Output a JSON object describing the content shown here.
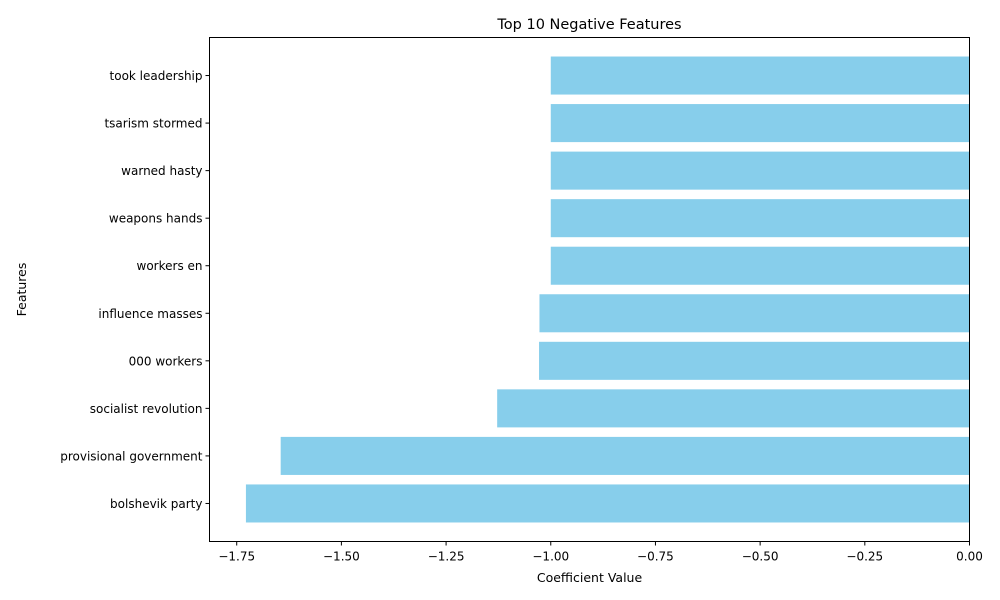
{
  "chart_data": {
    "type": "bar",
    "orientation": "horizontal",
    "title": "Top 10 Negative Features",
    "xlabel": "Coefficient Value",
    "ylabel": "Features",
    "xlim": [
      -1.815,
      0.0
    ],
    "xticks": [
      -1.75,
      -1.5,
      -1.25,
      -1.0,
      -0.75,
      -0.5,
      -0.25,
      0.0
    ],
    "xtick_labels": [
      "−1.75",
      "−1.50",
      "−1.25",
      "−1.00",
      "−0.75",
      "−0.50",
      "−0.25",
      "0.00"
    ],
    "categories": [
      "took leadership",
      "tsarism stormed",
      "warned hasty",
      "weapons hands",
      "workers en",
      "influence masses",
      "000 workers",
      "socialist revolution",
      "provisional government",
      "bolshevik party"
    ],
    "values": [
      -1.0,
      -1.0,
      -1.0,
      -1.0,
      -1.0,
      -1.027,
      -1.028,
      -1.128,
      -1.645,
      -1.728
    ],
    "bar_color": "#87ceeb",
    "grid": false,
    "legend": "none"
  }
}
